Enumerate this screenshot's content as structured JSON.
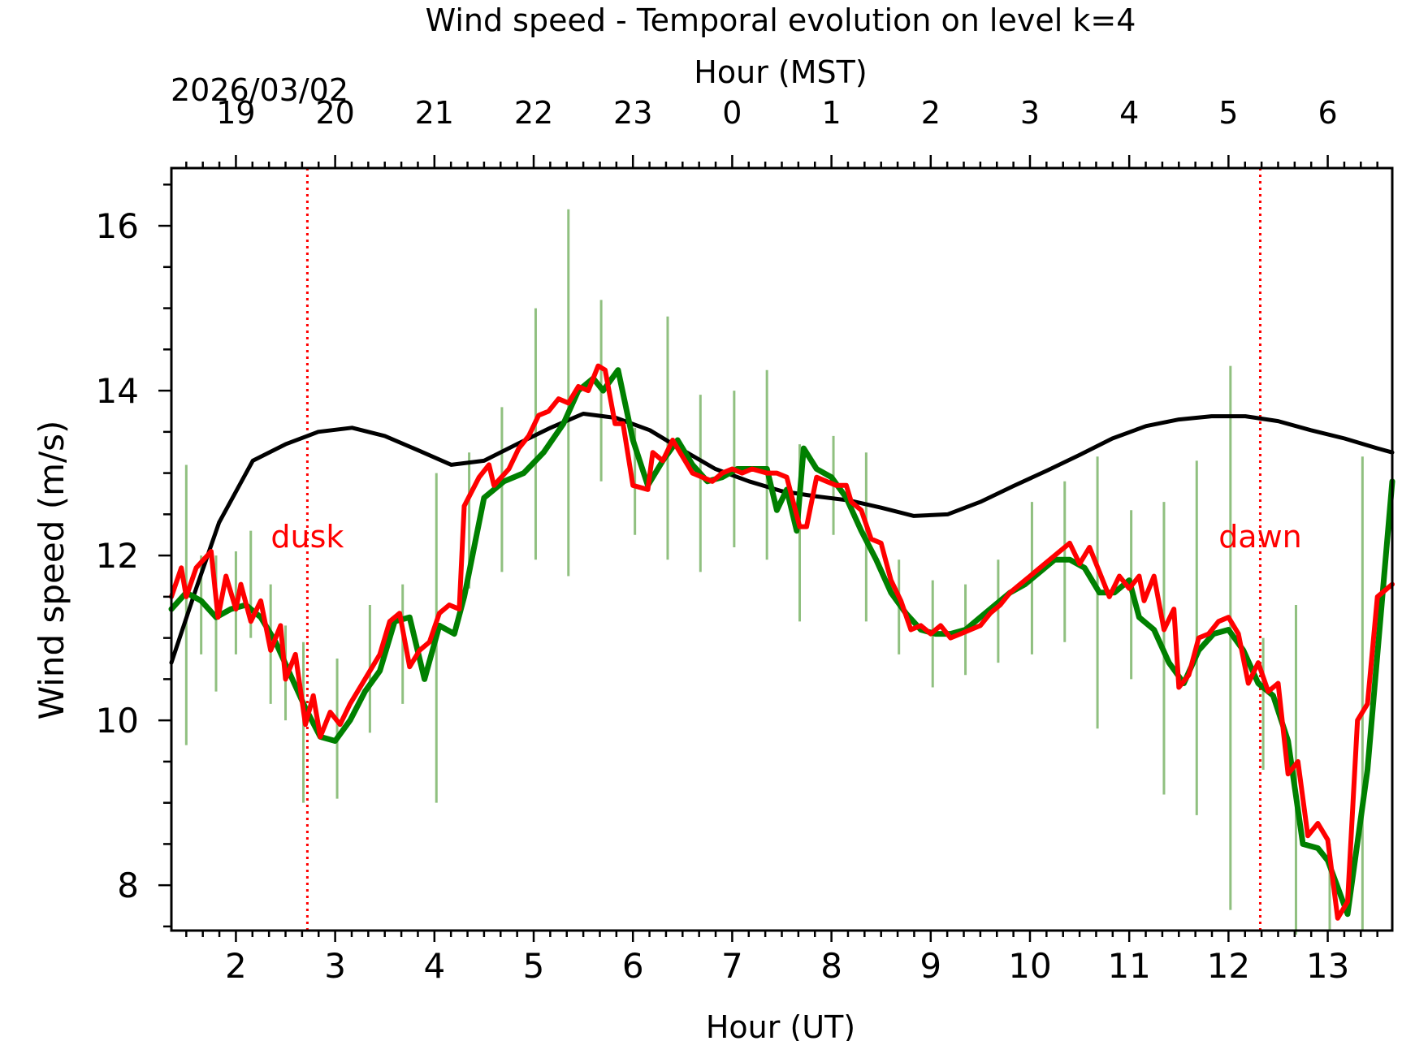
{
  "chart_data": {
    "type": "line",
    "title": "Wind speed - Temporal evolution on level k=4",
    "xlabel": "Hour (UT)",
    "x2label": "Hour (MST)",
    "date_label": "2026/03/02",
    "ylabel": "Wind speed (m/s)",
    "xlim": [
      1.35,
      13.65
    ],
    "ylim": [
      7.45,
      16.7
    ],
    "x_ticks": [
      2,
      3,
      4,
      5,
      6,
      7,
      8,
      9,
      10,
      11,
      12,
      13
    ],
    "x_tick_labels": [
      "2",
      "3",
      "4",
      "5",
      "6",
      "7",
      "8",
      "9",
      "10",
      "11",
      "12",
      "13"
    ],
    "y_ticks": [
      8,
      10,
      12,
      14,
      16
    ],
    "y_tick_labels": [
      "8",
      "10",
      "12",
      "14",
      "16"
    ],
    "top_ticks_ut": [
      2,
      3,
      4,
      5,
      6,
      7,
      8,
      9,
      10,
      11,
      12,
      13
    ],
    "top_tick_labels": [
      "19",
      "20",
      "21",
      "22",
      "23",
      "0",
      "1",
      "2",
      "3",
      "4",
      "5",
      "6"
    ],
    "grid": false,
    "annotations": [
      {
        "text": "dusk",
        "x": 2.72,
        "y": 12.0,
        "color": "#ff0000",
        "line_style": "dotted"
      },
      {
        "text": "dawn",
        "x": 12.32,
        "y": 12.0,
        "color": "#ff0000",
        "line_style": "dotted"
      }
    ],
    "series": [
      {
        "color": "#000000",
        "style": "solid",
        "x": [
          1.35,
          1.6,
          1.83,
          2.17,
          2.5,
          2.83,
          3.17,
          3.5,
          3.83,
          4.17,
          4.5,
          4.83,
          5.17,
          5.5,
          5.83,
          6.17,
          6.5,
          6.83,
          7.17,
          7.5,
          7.83,
          8.17,
          8.5,
          8.83,
          9.17,
          9.5,
          9.83,
          10.17,
          10.5,
          10.83,
          11.17,
          11.5,
          11.83,
          12.17,
          12.5,
          12.83,
          13.17,
          13.5,
          13.65
        ],
        "values": [
          10.7,
          11.6,
          12.4,
          13.15,
          13.35,
          13.5,
          13.55,
          13.45,
          13.28,
          13.1,
          13.15,
          13.35,
          13.55,
          13.72,
          13.67,
          13.52,
          13.28,
          13.05,
          12.9,
          12.78,
          12.72,
          12.67,
          12.58,
          12.48,
          12.5,
          12.65,
          12.84,
          13.03,
          13.22,
          13.42,
          13.57,
          13.65,
          13.69,
          13.69,
          13.63,
          13.52,
          13.42,
          13.3,
          13.25
        ]
      },
      {
        "color": "#008000",
        "style": "solid",
        "x": [
          1.35,
          1.5,
          1.65,
          1.8,
          1.95,
          2.1,
          2.25,
          2.4,
          2.55,
          2.7,
          2.85,
          3.0,
          3.15,
          3.3,
          3.45,
          3.6,
          3.75,
          3.9,
          4.05,
          4.2,
          4.3,
          4.5,
          4.7,
          4.9,
          5.1,
          5.3,
          5.45,
          5.6,
          5.7,
          5.85,
          6.0,
          6.15,
          6.3,
          6.45,
          6.6,
          6.75,
          6.9,
          7.05,
          7.2,
          7.35,
          7.45,
          7.55,
          7.65,
          7.72,
          7.85,
          8.0,
          8.15,
          8.3,
          8.45,
          8.6,
          8.75,
          8.9,
          9.05,
          9.2,
          9.35,
          9.5,
          9.65,
          9.8,
          9.95,
          10.1,
          10.25,
          10.4,
          10.55,
          10.7,
          10.85,
          11.0,
          11.1,
          11.25,
          11.4,
          11.55,
          11.7,
          11.85,
          12.0,
          12.15,
          12.3,
          12.45,
          12.6,
          12.75,
          12.9,
          13.0,
          13.2,
          13.4,
          13.65
        ],
        "values": [
          11.35,
          11.55,
          11.45,
          11.25,
          11.35,
          11.4,
          11.25,
          10.95,
          10.55,
          10.15,
          9.8,
          9.75,
          10.0,
          10.35,
          10.6,
          11.2,
          11.25,
          10.5,
          11.15,
          11.05,
          11.5,
          12.7,
          12.9,
          13.0,
          13.25,
          13.6,
          14.0,
          14.15,
          14.0,
          14.25,
          13.4,
          12.85,
          13.15,
          13.4,
          13.1,
          12.9,
          12.95,
          13.05,
          13.05,
          13.05,
          12.55,
          12.8,
          12.3,
          13.3,
          13.05,
          12.95,
          12.7,
          12.3,
          11.95,
          11.55,
          11.3,
          11.1,
          11.05,
          11.05,
          11.1,
          11.25,
          11.4,
          11.55,
          11.65,
          11.8,
          11.95,
          11.95,
          11.85,
          11.55,
          11.55,
          11.7,
          11.25,
          11.1,
          10.7,
          10.45,
          10.85,
          11.05,
          11.1,
          10.85,
          10.45,
          10.3,
          9.75,
          8.5,
          8.45,
          8.3,
          7.65,
          9.4,
          12.9
        ]
      },
      {
        "color": "#ff0000",
        "style": "solid",
        "x": [
          1.35,
          1.45,
          1.5,
          1.6,
          1.75,
          1.82,
          1.9,
          2.0,
          2.05,
          2.15,
          2.25,
          2.35,
          2.45,
          2.5,
          2.6,
          2.7,
          2.78,
          2.85,
          2.95,
          3.05,
          3.15,
          3.3,
          3.45,
          3.55,
          3.65,
          3.75,
          3.85,
          3.95,
          4.05,
          4.15,
          4.25,
          4.3,
          4.45,
          4.55,
          4.6,
          4.75,
          4.85,
          4.95,
          5.05,
          5.15,
          5.25,
          5.35,
          5.45,
          5.55,
          5.65,
          5.72,
          5.82,
          5.9,
          6.0,
          6.15,
          6.2,
          6.3,
          6.4,
          6.5,
          6.6,
          6.7,
          6.8,
          6.9,
          7.0,
          7.1,
          7.2,
          7.35,
          7.45,
          7.55,
          7.68,
          7.75,
          7.85,
          7.95,
          8.05,
          8.15,
          8.2,
          8.3,
          8.4,
          8.5,
          8.6,
          8.7,
          8.8,
          8.9,
          9.0,
          9.1,
          9.2,
          9.3,
          9.4,
          9.5,
          9.6,
          9.7,
          9.8,
          9.9,
          10.0,
          10.1,
          10.2,
          10.3,
          10.4,
          10.5,
          10.6,
          10.7,
          10.8,
          10.9,
          11.0,
          11.1,
          11.15,
          11.25,
          11.35,
          11.45,
          11.5,
          11.6,
          11.7,
          11.8,
          11.9,
          12.0,
          12.1,
          12.2,
          12.3,
          12.4,
          12.5,
          12.6,
          12.7,
          12.8,
          12.9,
          13.0,
          13.1,
          13.2,
          13.3,
          13.4,
          13.5,
          13.65
        ],
        "values": [
          11.5,
          11.85,
          11.5,
          11.85,
          12.05,
          11.25,
          11.75,
          11.35,
          11.65,
          11.2,
          11.45,
          10.85,
          11.15,
          10.5,
          10.8,
          9.95,
          10.3,
          9.8,
          10.1,
          9.95,
          10.2,
          10.5,
          10.8,
          11.2,
          11.3,
          10.65,
          10.85,
          10.95,
          11.3,
          11.4,
          11.35,
          12.6,
          12.95,
          13.1,
          12.85,
          13.05,
          13.3,
          13.45,
          13.7,
          13.75,
          13.9,
          13.85,
          14.05,
          14.0,
          14.3,
          14.25,
          13.6,
          13.6,
          12.85,
          12.8,
          13.25,
          13.15,
          13.4,
          13.2,
          13.0,
          12.95,
          12.9,
          13.0,
          13.05,
          13.0,
          13.05,
          13.0,
          13.0,
          12.95,
          12.35,
          12.35,
          12.95,
          12.9,
          12.85,
          12.85,
          12.65,
          12.55,
          12.2,
          12.15,
          11.7,
          11.45,
          11.1,
          11.15,
          11.05,
          11.15,
          11.0,
          11.05,
          11.1,
          11.15,
          11.3,
          11.4,
          11.55,
          11.65,
          11.75,
          11.85,
          11.95,
          12.05,
          12.15,
          11.9,
          12.1,
          11.8,
          11.5,
          11.75,
          11.6,
          11.75,
          11.45,
          11.75,
          11.1,
          11.35,
          10.4,
          10.55,
          11.0,
          11.05,
          11.2,
          11.25,
          11.05,
          10.45,
          10.7,
          10.35,
          10.45,
          9.35,
          9.5,
          8.6,
          8.75,
          8.55,
          7.6,
          7.8,
          10.0,
          10.2,
          11.5,
          11.65
        ]
      }
    ],
    "error_bars": {
      "color": "#90c080",
      "x": [
        1.5,
        1.65,
        1.8,
        2.0,
        2.15,
        2.35,
        2.5,
        2.68,
        3.02,
        3.35,
        3.68,
        4.02,
        4.35,
        4.68,
        5.02,
        5.35,
        5.68,
        6.02,
        6.35,
        6.68,
        7.02,
        7.35,
        7.68,
        8.02,
        8.35,
        8.68,
        9.02,
        9.35,
        9.68,
        10.02,
        10.35,
        10.68,
        11.02,
        11.35,
        11.68,
        12.02,
        12.35,
        12.68,
        13.02,
        13.35
      ],
      "low": [
        9.7,
        10.8,
        10.35,
        10.8,
        11.0,
        10.2,
        10.0,
        9.0,
        9.05,
        9.85,
        10.2,
        9.0,
        11.6,
        11.8,
        11.95,
        11.75,
        12.9,
        12.25,
        11.95,
        11.8,
        12.1,
        11.95,
        11.2,
        12.25,
        11.2,
        10.8,
        10.4,
        10.55,
        10.7,
        10.8,
        10.95,
        9.9,
        10.5,
        9.1,
        8.85,
        7.7,
        9.4,
        7.4,
        7.45,
        7.45
      ],
      "high": [
        13.1,
        12.0,
        12.0,
        12.05,
        12.3,
        11.65,
        11.15,
        10.95,
        10.75,
        11.4,
        11.65,
        13.0,
        13.25,
        13.8,
        15.0,
        16.2,
        15.1,
        13.55,
        14.9,
        13.95,
        14.0,
        14.25,
        13.35,
        13.45,
        13.25,
        11.95,
        11.7,
        11.65,
        11.95,
        12.65,
        12.9,
        13.2,
        12.55,
        12.65,
        13.15,
        14.3,
        11.0,
        11.4,
        8.5,
        13.2
      ]
    }
  }
}
